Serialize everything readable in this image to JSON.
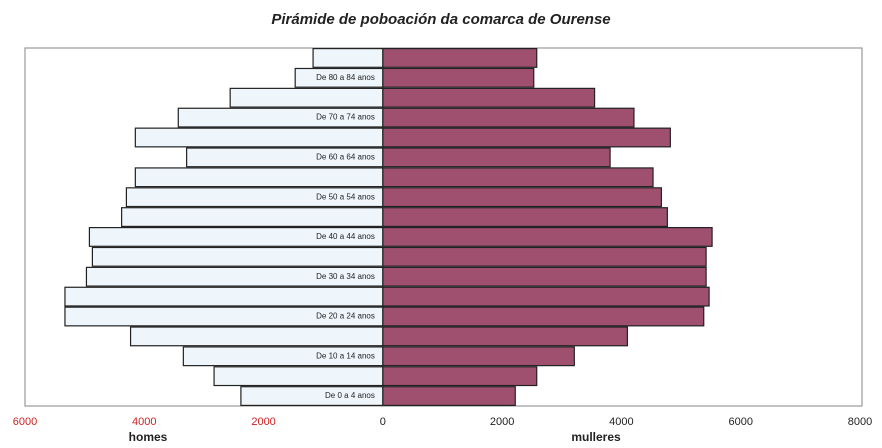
{
  "chart_data": {
    "type": "pyramid",
    "title": "Pirámide de poboación da comarca de Ourense",
    "categories": [
      "De 0 a 4 anos",
      null,
      "De 10 a 14 anos",
      null,
      "De 20 a 24 anos",
      null,
      "De 30 a 34 anos",
      null,
      "De 40 a 44 anos",
      null,
      "De 50 a 54 anos",
      null,
      "De 60 a 64 anos",
      null,
      "De 70 a 74 anos",
      null,
      "De 80 a 84 anos",
      null
    ],
    "series": [
      {
        "name": "homes",
        "color": "#eef6fb",
        "side": "left",
        "values": [
          2380,
          2830,
          3345,
          4230,
          5330,
          5330,
          4970,
          4870,
          4920,
          4380,
          4300,
          4150,
          3290,
          4150,
          3430,
          2560,
          1470,
          1170
        ]
      },
      {
        "name": "mulleres",
        "color": "#a0506f",
        "side": "right",
        "values": [
          2220,
          2580,
          3210,
          4100,
          5380,
          5470,
          5420,
          5420,
          5520,
          4770,
          4670,
          4530,
          3810,
          4820,
          4210,
          3550,
          2530,
          2580
        ]
      }
    ],
    "xlim": [
      -6000,
      8000
    ],
    "xticks": [
      {
        "value": -6000,
        "label": "6000"
      },
      {
        "value": -4000,
        "label": "4000"
      },
      {
        "value": -2000,
        "label": "2000"
      },
      0,
      2000,
      4000,
      6000,
      8000
    ],
    "left_tick_color": "#cc2222"
  }
}
